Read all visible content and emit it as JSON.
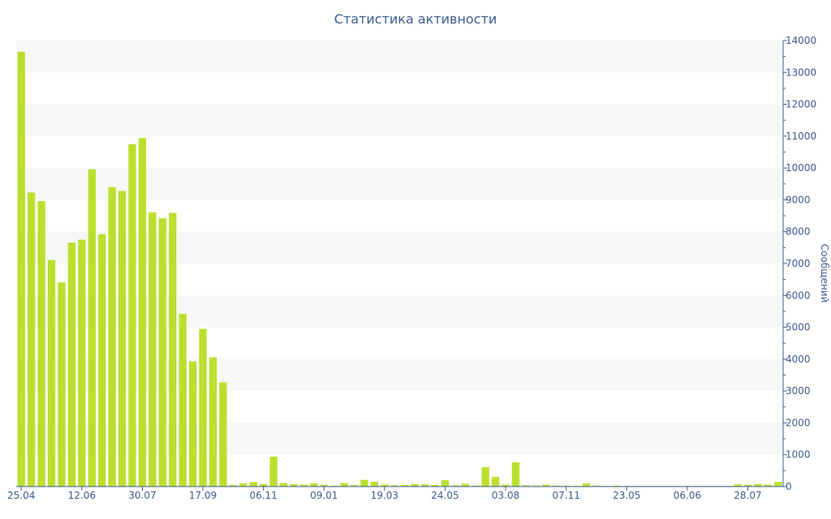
{
  "chart_data": {
    "type": "bar",
    "title": "Статистика активности",
    "xlabel": "",
    "ylabel": "Сообщений",
    "y_axis_side": "right",
    "ylim": [
      0,
      14000
    ],
    "grid": true,
    "colors": {
      "bar": "#bcdf2e",
      "band": "#f7f7f7",
      "axis": "#3e5b8f"
    },
    "x_tick_labels": [
      "25.04",
      "12.06",
      "30.07",
      "17.09",
      "06.11",
      "09.01",
      "19.03",
      "24.05",
      "03.08",
      "07.11",
      "23.05",
      "06.06",
      "28.07"
    ],
    "y_ticks": [
      0,
      1000,
      2000,
      3000,
      4000,
      5000,
      6000,
      7000,
      8000,
      9000,
      10000,
      11000,
      12000,
      13000,
      14000
    ],
    "values": [
      13650,
      9230,
      8960,
      7110,
      6410,
      7660,
      7750,
      9960,
      7920,
      9400,
      9280,
      10750,
      10940,
      8610,
      8420,
      8590,
      5420,
      3930,
      4950,
      4060,
      3270,
      50,
      100,
      140,
      80,
      940,
      110,
      80,
      60,
      100,
      60,
      30,
      110,
      50,
      210,
      150,
      60,
      40,
      50,
      80,
      70,
      50,
      200,
      40,
      90,
      30,
      610,
      300,
      60,
      760,
      40,
      30,
      60,
      30,
      30,
      20,
      100,
      30,
      20,
      30,
      20,
      20,
      20,
      20,
      20,
      20,
      20,
      20,
      20,
      20,
      20,
      70,
      60,
      80,
      60,
      150
    ]
  }
}
